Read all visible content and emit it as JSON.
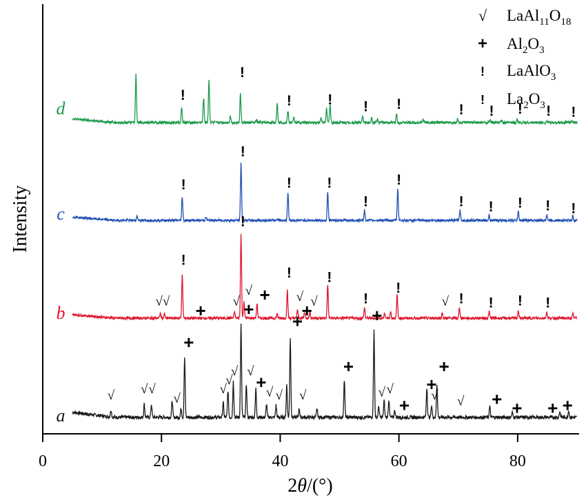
{
  "chart_data": {
    "type": "line",
    "xlabel_main": "2",
    "xlabel_theta": "θ",
    "xlabel_unit": "/(°)",
    "ylabel": "Intensity",
    "xlim": [
      0,
      90
    ],
    "x_ticks": [
      "0",
      "20",
      "40",
      "60",
      "80"
    ],
    "x_tick_values": [
      0,
      20,
      40,
      60,
      80
    ],
    "legend": [
      {
        "marker": "√",
        "name": "LaAl",
        "sub": "11",
        "name2": "O",
        "sub2": "18"
      },
      {
        "marker": "+",
        "name": "Al",
        "sub": "2",
        "name2": "O",
        "sub2": "3"
      },
      {
        "marker": "!",
        "name": "LaAlO",
        "sub": "3",
        "name2": "",
        "sub2": ""
      },
      {
        "marker": "!",
        "name": "La",
        "sub": "2",
        "name2": "O",
        "sub2": "3"
      }
    ],
    "series": [
      {
        "name": "a",
        "color": "#1a1a1a",
        "peaks": [
          [
            11.5,
            0.12
          ],
          [
            17.1,
            0.22
          ],
          [
            18.3,
            0.22
          ],
          [
            21.8,
            0.28
          ],
          [
            23.3,
            0.15
          ],
          [
            23.9,
            1.0
          ],
          [
            30.4,
            0.25
          ],
          [
            31.2,
            0.45
          ],
          [
            32.1,
            0.6
          ],
          [
            33.4,
            1.55
          ],
          [
            34.3,
            0.55
          ],
          [
            35.9,
            0.48
          ],
          [
            37.7,
            0.22
          ],
          [
            39.3,
            0.2
          ],
          [
            41.1,
            0.55
          ],
          [
            41.7,
            1.33
          ],
          [
            43.2,
            0.15
          ],
          [
            46.2,
            0.15
          ],
          [
            50.8,
            0.62
          ],
          [
            55.8,
            1.45
          ],
          [
            56.6,
            0.18
          ],
          [
            57.5,
            0.28
          ],
          [
            58.3,
            0.3
          ],
          [
            59.3,
            0.12
          ],
          [
            64.7,
            0.5
          ],
          [
            65.5,
            0.2
          ],
          [
            66.4,
            0.55
          ],
          [
            75.3,
            0.18
          ],
          [
            79.1,
            0.08
          ],
          [
            87.1,
            0.1
          ],
          [
            88.6,
            0.12
          ]
        ],
        "markers": [
          {
            "x": 11.5,
            "sym": "√",
            "h": 0.3
          },
          {
            "x": 17.1,
            "sym": "√",
            "h": 0.4
          },
          {
            "x": 18.4,
            "sym": "√",
            "h": 0.4
          },
          {
            "x": 22.6,
            "sym": "√",
            "h": 0.25
          },
          {
            "x": 24.6,
            "sym": "+",
            "h": 1.15
          },
          {
            "x": 30.4,
            "sym": "√",
            "h": 0.4
          },
          {
            "x": 31.4,
            "sym": "√",
            "h": 0.55
          },
          {
            "x": 32.3,
            "sym": "√",
            "h": 0.7
          },
          {
            "x": 34.7,
            "sym": "+",
            "h": 1.7
          },
          {
            "x": 35.0,
            "sym": "√",
            "h": 0.7
          },
          {
            "x": 36.8,
            "sym": "+",
            "h": 0.48
          },
          {
            "x": 38.2,
            "sym": "√",
            "h": 0.35
          },
          {
            "x": 39.8,
            "sym": "√",
            "h": 0.3
          },
          {
            "x": 42.9,
            "sym": "+",
            "h": 1.5
          },
          {
            "x": 43.8,
            "sym": "√",
            "h": 0.3
          },
          {
            "x": 51.5,
            "sym": "+",
            "h": 0.75
          },
          {
            "x": 56.3,
            "sym": "+",
            "h": 1.6
          },
          {
            "x": 57.1,
            "sym": "√",
            "h": 0.35
          },
          {
            "x": 58.5,
            "sym": "√",
            "h": 0.4
          },
          {
            "x": 60.9,
            "sym": "+",
            "h": 0.1
          },
          {
            "x": 65.5,
            "sym": "+",
            "h": 0.45
          },
          {
            "x": 66.0,
            "sym": "√",
            "h": 0.3
          },
          {
            "x": 67.6,
            "sym": "+",
            "h": 0.75
          },
          {
            "x": 70.4,
            "sym": "√",
            "h": 0.2
          },
          {
            "x": 76.5,
            "sym": "+",
            "h": 0.2
          },
          {
            "x": 79.9,
            "sym": "+",
            "h": 0.05
          },
          {
            "x": 85.9,
            "sym": "+",
            "h": 0.05
          },
          {
            "x": 88.4,
            "sym": "+",
            "h": 0.1
          }
        ]
      },
      {
        "name": "b",
        "color": "#e0142c",
        "peaks": [
          [
            19.8,
            0.12
          ],
          [
            20.5,
            0.1
          ],
          [
            23.5,
            1.0
          ],
          [
            32.3,
            0.15
          ],
          [
            33.4,
            2.0
          ],
          [
            33.9,
            0.4
          ],
          [
            36.1,
            0.35
          ],
          [
            39.5,
            0.1
          ],
          [
            41.2,
            0.65
          ],
          [
            42.9,
            0.2
          ],
          [
            44.1,
            0.15
          ],
          [
            45.0,
            0.15
          ],
          [
            48.0,
            0.8
          ],
          [
            54.2,
            0.25
          ],
          [
            57.6,
            0.12
          ],
          [
            58.6,
            0.15
          ],
          [
            59.7,
            0.55
          ],
          [
            67.3,
            0.12
          ],
          [
            70.2,
            0.25
          ],
          [
            75.2,
            0.15
          ],
          [
            80.1,
            0.18
          ],
          [
            84.9,
            0.15
          ],
          [
            89.3,
            0.1
          ]
        ],
        "markers": [
          {
            "x": 19.6,
            "sym": "√",
            "h": 0.3
          },
          {
            "x": 20.8,
            "sym": "√",
            "h": 0.3
          },
          {
            "x": 23.7,
            "sym": "!",
            "h": 1.25
          },
          {
            "x": 26.6,
            "sym": "+",
            "h": 0.03
          },
          {
            "x": 32.6,
            "sym": "√",
            "h": 0.3
          },
          {
            "x": 33.7,
            "sym": "!",
            "h": 2.15
          },
          {
            "x": 34.7,
            "sym": "√",
            "h": 0.55
          },
          {
            "x": 37.4,
            "sym": "+",
            "h": 0.4
          },
          {
            "x": 41.5,
            "sym": "!",
            "h": 0.95
          },
          {
            "x": 43.3,
            "sym": "√",
            "h": 0.4
          },
          {
            "x": 44.5,
            "sym": "+",
            "h": 0.03
          },
          {
            "x": 45.7,
            "sym": "√",
            "h": 0.3
          },
          {
            "x": 48.3,
            "sym": "!",
            "h": 0.85
          },
          {
            "x": 54.4,
            "sym": "!",
            "h": 0.35
          },
          {
            "x": 59.9,
            "sym": "!",
            "h": 0.6
          },
          {
            "x": 67.8,
            "sym": "√",
            "h": 0.3
          },
          {
            "x": 70.5,
            "sym": "!",
            "h": 0.35
          },
          {
            "x": 75.5,
            "sym": "!",
            "h": 0.25
          },
          {
            "x": 80.4,
            "sym": "!",
            "h": 0.3
          },
          {
            "x": 85.1,
            "sym": "!",
            "h": 0.25
          }
        ]
      },
      {
        "name": "c",
        "color": "#1f4fb5",
        "peaks": [
          [
            15.9,
            0.12
          ],
          [
            23.5,
            0.6
          ],
          [
            27.5,
            0.08
          ],
          [
            33.4,
            1.45
          ],
          [
            39.5,
            0.05
          ],
          [
            41.3,
            0.7
          ],
          [
            48.0,
            0.72
          ],
          [
            54.2,
            0.25
          ],
          [
            59.8,
            0.8
          ],
          [
            70.3,
            0.25
          ],
          [
            75.2,
            0.12
          ],
          [
            80.1,
            0.22
          ],
          [
            84.9,
            0.15
          ],
          [
            89.3,
            0.1
          ]
        ],
        "markers": [
          {
            "x": 23.7,
            "sym": "!",
            "h": 0.78
          },
          {
            "x": 33.7,
            "sym": "!",
            "h": 1.6
          },
          {
            "x": 41.5,
            "sym": "!",
            "h": 0.82
          },
          {
            "x": 48.3,
            "sym": "!",
            "h": 0.82
          },
          {
            "x": 54.4,
            "sym": "!",
            "h": 0.35
          },
          {
            "x": 60.0,
            "sym": "!",
            "h": 0.9
          },
          {
            "x": 70.5,
            "sym": "!",
            "h": 0.35
          },
          {
            "x": 75.5,
            "sym": "!",
            "h": 0.22
          },
          {
            "x": 80.4,
            "sym": "!",
            "h": 0.32
          },
          {
            "x": 85.1,
            "sym": "!",
            "h": 0.25
          },
          {
            "x": 89.4,
            "sym": "!",
            "h": 0.18
          }
        ]
      },
      {
        "name": "d",
        "color": "#1c9a4c",
        "peaks": [
          [
            15.7,
            1.05
          ],
          [
            23.4,
            0.35
          ],
          [
            27.1,
            0.55
          ],
          [
            28.0,
            0.95
          ],
          [
            31.6,
            0.15
          ],
          [
            33.3,
            0.65
          ],
          [
            36.0,
            0.05
          ],
          [
            39.5,
            0.45
          ],
          [
            41.3,
            0.25
          ],
          [
            42.3,
            0.1
          ],
          [
            46.9,
            0.1
          ],
          [
            47.8,
            0.3
          ],
          [
            48.4,
            0.4
          ],
          [
            53.9,
            0.15
          ],
          [
            55.4,
            0.12
          ],
          [
            56.4,
            0.08
          ],
          [
            59.6,
            0.2
          ],
          [
            64.1,
            0.08
          ],
          [
            69.9,
            0.08
          ],
          [
            75.4,
            0.05
          ],
          [
            77.3,
            0.05
          ],
          [
            79.9,
            0.08
          ],
          [
            84.9,
            0.04
          ],
          [
            89.1,
            0.04
          ]
        ],
        "markers": [
          {
            "x": 23.6,
            "sym": "!",
            "h": 0.5
          },
          {
            "x": 33.6,
            "sym": "!",
            "h": 1.0
          },
          {
            "x": 41.5,
            "sym": "!",
            "h": 0.38
          },
          {
            "x": 48.4,
            "sym": "!",
            "h": 0.4
          },
          {
            "x": 54.4,
            "sym": "!",
            "h": 0.25
          },
          {
            "x": 60.0,
            "sym": "!",
            "h": 0.3
          },
          {
            "x": 70.5,
            "sym": "!",
            "h": 0.18
          },
          {
            "x": 75.6,
            "sym": "!",
            "h": 0.15
          },
          {
            "x": 80.4,
            "sym": "!",
            "h": 0.2
          },
          {
            "x": 85.2,
            "sym": "!",
            "h": 0.15
          },
          {
            "x": 89.4,
            "sym": "!",
            "h": 0.13
          }
        ]
      }
    ]
  }
}
